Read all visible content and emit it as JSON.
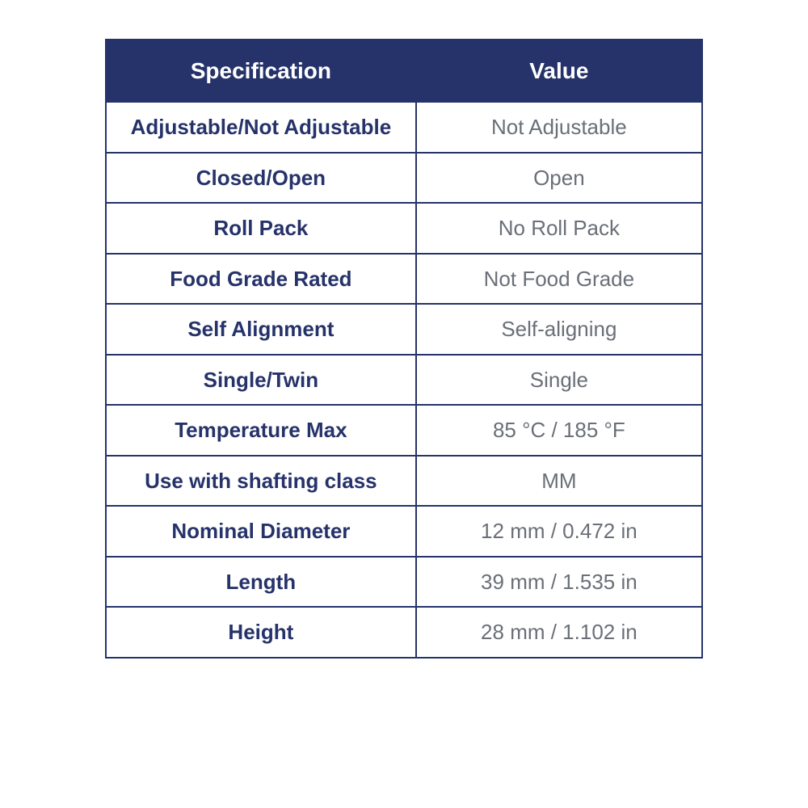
{
  "table": {
    "headers": {
      "spec": "Specification",
      "value": "Value"
    },
    "rows": [
      {
        "spec": "Adjustable/Not Adjustable",
        "value": "Not Adjustable"
      },
      {
        "spec": "Closed/Open",
        "value": "Open"
      },
      {
        "spec": "Roll Pack",
        "value": "No Roll Pack"
      },
      {
        "spec": "Food Grade Rated",
        "value": "Not Food Grade"
      },
      {
        "spec": "Self Alignment",
        "value": "Self-aligning"
      },
      {
        "spec": "Single/Twin",
        "value": "Single"
      },
      {
        "spec": "Temperature Max",
        "value": "85 °C / 185 °F"
      },
      {
        "spec": "Use with shafting class",
        "value": "MM"
      },
      {
        "spec": "Nominal Diameter",
        "value": "12 mm / 0.472 in"
      },
      {
        "spec": "Length",
        "value": "39 mm / 1.535 in"
      },
      {
        "spec": "Height",
        "value": "28 mm / 1.102 in"
      }
    ],
    "colors": {
      "header_bg": "#26336a",
      "header_fg": "#ffffff",
      "border": "#26336a",
      "spec_fg": "#26336a",
      "value_fg": "#6a6f78",
      "page_bg": "#ffffff"
    },
    "font_sizes": {
      "header": 28,
      "cell": 26
    }
  }
}
